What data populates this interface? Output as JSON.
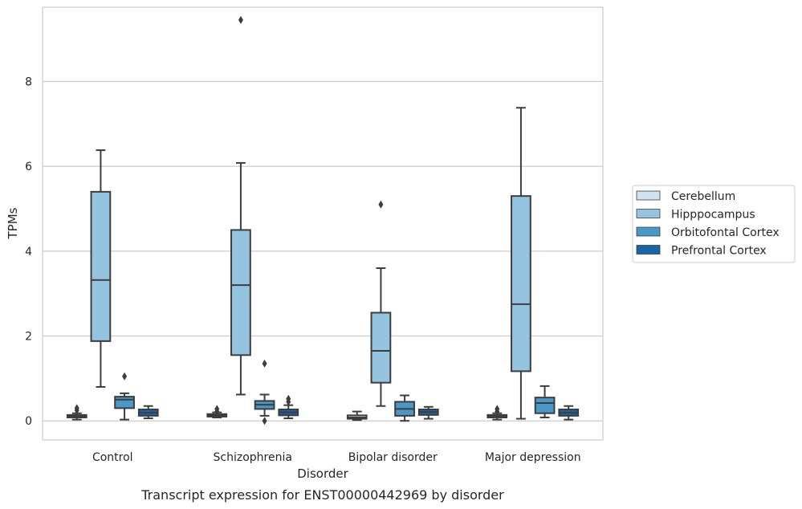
{
  "caption": "Transcript expression for ENST00000442969 by disorder",
  "chart_data": {
    "type": "box",
    "xlabel": "Disorder",
    "ylabel": "TPMs",
    "categories": [
      "Control",
      "Schizophrenia",
      "Bipolar disorder",
      "Major depression"
    ],
    "ylim": [
      -0.45,
      9.75
    ],
    "yticks": [
      0,
      2,
      4,
      6,
      8
    ],
    "grid": "horizontal",
    "legend_position": "right",
    "hue_order": [
      "Cerebellum",
      "Hipppocampus",
      "Orbitofontal Cortex",
      "Prefrontal Cortex"
    ],
    "colors": {
      "Cerebellum": "#d0e1f2",
      "Hipppocampus": "#94c4df",
      "Orbitofontal Cortex": "#4a98c9",
      "Prefrontal Cortex": "#1764ab",
      "outline": "#3d3d3d",
      "grid": "#cccccc"
    },
    "series": [
      {
        "name": "Cerebellum",
        "boxes": [
          {
            "category": "Control",
            "q1": 0.08,
            "median": 0.11,
            "q3": 0.14,
            "whislo": 0.03,
            "whishi": 0.18,
            "fliers": [
              0.25,
              0.3
            ]
          },
          {
            "category": "Schizophrenia",
            "q1": 0.1,
            "median": 0.13,
            "q3": 0.16,
            "whislo": 0.08,
            "whishi": 0.2,
            "fliers": [
              0.22,
              0.28
            ]
          },
          {
            "category": "Bipolar disorder",
            "q1": 0.05,
            "median": 0.08,
            "q3": 0.13,
            "whislo": 0.02,
            "whishi": 0.22,
            "fliers": []
          },
          {
            "category": "Major depression",
            "q1": 0.08,
            "median": 0.11,
            "q3": 0.14,
            "whislo": 0.03,
            "whishi": 0.18,
            "fliers": [
              0.22,
              0.28
            ]
          }
        ]
      },
      {
        "name": "Hipppocampus",
        "boxes": [
          {
            "category": "Control",
            "q1": 1.88,
            "median": 3.32,
            "q3": 5.4,
            "whislo": 0.8,
            "whishi": 6.38,
            "fliers": []
          },
          {
            "category": "Schizophrenia",
            "q1": 1.55,
            "median": 3.2,
            "q3": 4.5,
            "whislo": 0.62,
            "whishi": 6.08,
            "fliers": [
              9.45
            ]
          },
          {
            "category": "Bipolar disorder",
            "q1": 0.9,
            "median": 1.65,
            "q3": 2.55,
            "whislo": 0.35,
            "whishi": 3.6,
            "fliers": [
              5.1
            ]
          },
          {
            "category": "Major depression",
            "q1": 1.17,
            "median": 2.75,
            "q3": 5.3,
            "whislo": 0.05,
            "whishi": 7.38,
            "fliers": []
          }
        ]
      },
      {
        "name": "Orbitofontal Cortex",
        "boxes": [
          {
            "category": "Control",
            "q1": 0.3,
            "median": 0.5,
            "q3": 0.57,
            "whislo": 0.03,
            "whishi": 0.65,
            "fliers": [
              1.05
            ]
          },
          {
            "category": "Schizophrenia",
            "q1": 0.28,
            "median": 0.38,
            "q3": 0.47,
            "whislo": 0.12,
            "whishi": 0.62,
            "fliers": [
              1.35,
              0.0
            ]
          },
          {
            "category": "Bipolar disorder",
            "q1": 0.12,
            "median": 0.28,
            "q3": 0.45,
            "whislo": 0.0,
            "whishi": 0.6,
            "fliers": []
          },
          {
            "category": "Major depression",
            "q1": 0.18,
            "median": 0.42,
            "q3": 0.55,
            "whislo": 0.08,
            "whishi": 0.82,
            "fliers": []
          }
        ]
      },
      {
        "name": "Prefrontal Cortex",
        "boxes": [
          {
            "category": "Control",
            "q1": 0.12,
            "median": 0.19,
            "q3": 0.27,
            "whislo": 0.06,
            "whishi": 0.35,
            "fliers": []
          },
          {
            "category": "Schizophrenia",
            "q1": 0.13,
            "median": 0.2,
            "q3": 0.27,
            "whislo": 0.06,
            "whishi": 0.37,
            "fliers": [
              0.45,
              0.52
            ]
          },
          {
            "category": "Bipolar disorder",
            "q1": 0.14,
            "median": 0.21,
            "q3": 0.27,
            "whislo": 0.05,
            "whishi": 0.33,
            "fliers": []
          },
          {
            "category": "Major depression",
            "q1": 0.12,
            "median": 0.19,
            "q3": 0.27,
            "whislo": 0.03,
            "whishi": 0.35,
            "fliers": []
          }
        ]
      }
    ]
  }
}
